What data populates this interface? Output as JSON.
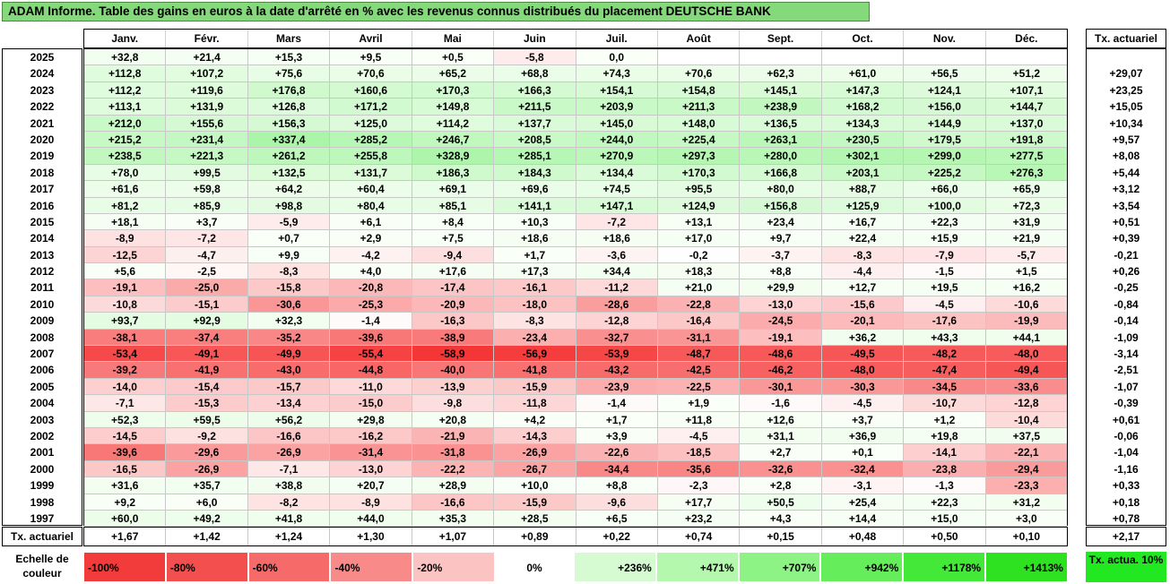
{
  "title": "ADAM Informe. Table des gains en euros à la date d'arrêté en % avec les revenus connus distribués du placement DEUTSCHE BANK",
  "months": [
    "Janv.",
    "Févr.",
    "Mars",
    "Avril",
    "Mai",
    "Juin",
    "Juil.",
    "Août",
    "Sept.",
    "Oct.",
    "Nov.",
    "Déc."
  ],
  "tx_header": "Tx. actuariel",
  "rows": [
    {
      "year": "2025",
      "values": [
        "+32,8",
        "+21,4",
        "+15,3",
        "+9,5",
        "+0,5",
        "-5,8",
        "0,0",
        "",
        "",
        "",
        "",
        ""
      ],
      "tx": ""
    },
    {
      "year": "2024",
      "values": [
        "+112,8",
        "+107,2",
        "+75,6",
        "+70,6",
        "+65,2",
        "+68,8",
        "+74,3",
        "+70,6",
        "+62,3",
        "+61,0",
        "+56,5",
        "+51,2"
      ],
      "tx": "+29,07"
    },
    {
      "year": "2023",
      "values": [
        "+112,2",
        "+119,6",
        "+176,8",
        "+160,6",
        "+170,3",
        "+166,3",
        "+154,1",
        "+154,8",
        "+145,1",
        "+147,3",
        "+124,1",
        "+107,1"
      ],
      "tx": "+23,25"
    },
    {
      "year": "2022",
      "values": [
        "+113,1",
        "+131,9",
        "+126,8",
        "+171,2",
        "+149,8",
        "+211,5",
        "+203,9",
        "+211,3",
        "+238,9",
        "+168,2",
        "+156,0",
        "+144,7"
      ],
      "tx": "+15,05"
    },
    {
      "year": "2021",
      "values": [
        "+212,0",
        "+155,6",
        "+156,3",
        "+125,0",
        "+114,2",
        "+137,7",
        "+145,0",
        "+148,0",
        "+136,5",
        "+134,3",
        "+144,9",
        "+137,0"
      ],
      "tx": "+10,34"
    },
    {
      "year": "2020",
      "values": [
        "+215,2",
        "+231,4",
        "+337,4",
        "+285,2",
        "+246,7",
        "+208,5",
        "+244,0",
        "+225,4",
        "+263,1",
        "+230,5",
        "+179,5",
        "+191,8"
      ],
      "tx": "+9,57"
    },
    {
      "year": "2019",
      "values": [
        "+238,5",
        "+221,3",
        "+261,2",
        "+255,8",
        "+328,9",
        "+285,1",
        "+270,9",
        "+297,3",
        "+280,0",
        "+302,1",
        "+299,0",
        "+277,5"
      ],
      "tx": "+8,08"
    },
    {
      "year": "2018",
      "values": [
        "+78,0",
        "+99,5",
        "+132,5",
        "+131,7",
        "+186,3",
        "+184,3",
        "+134,4",
        "+170,3",
        "+166,8",
        "+203,1",
        "+225,2",
        "+276,3"
      ],
      "tx": "+5,44"
    },
    {
      "year": "2017",
      "values": [
        "+61,6",
        "+59,8",
        "+64,2",
        "+60,4",
        "+69,1",
        "+69,6",
        "+74,5",
        "+95,5",
        "+80,0",
        "+88,7",
        "+66,0",
        "+65,9"
      ],
      "tx": "+3,12"
    },
    {
      "year": "2016",
      "values": [
        "+81,2",
        "+85,9",
        "+98,8",
        "+80,4",
        "+85,1",
        "+141,1",
        "+147,1",
        "+124,9",
        "+156,8",
        "+125,9",
        "+100,0",
        "+72,3"
      ],
      "tx": "+3,54"
    },
    {
      "year": "2015",
      "values": [
        "+18,1",
        "+3,7",
        "-5,9",
        "+6,1",
        "+8,4",
        "+10,3",
        "-7,2",
        "+13,1",
        "+23,4",
        "+16,7",
        "+22,3",
        "+31,9"
      ],
      "tx": "+0,51"
    },
    {
      "year": "2014",
      "values": [
        "-8,9",
        "-7,2",
        "+0,7",
        "+2,9",
        "+7,5",
        "+18,6",
        "+18,6",
        "+17,0",
        "+9,7",
        "+22,4",
        "+15,9",
        "+21,9"
      ],
      "tx": "+0,39"
    },
    {
      "year": "2013",
      "values": [
        "-12,5",
        "-4,7",
        "+9,9",
        "-4,2",
        "-9,4",
        "+1,7",
        "-3,6",
        "-0,2",
        "-3,7",
        "-8,3",
        "-7,9",
        "-5,7"
      ],
      "tx": "-0,21"
    },
    {
      "year": "2012",
      "values": [
        "+5,6",
        "-2,5",
        "-8,3",
        "+4,0",
        "+17,6",
        "+17,3",
        "+34,4",
        "+18,3",
        "+8,8",
        "-4,4",
        "-1,5",
        "+1,5"
      ],
      "tx": "+0,26"
    },
    {
      "year": "2011",
      "values": [
        "-19,1",
        "-25,0",
        "-15,8",
        "-20,8",
        "-17,4",
        "-16,1",
        "-11,2",
        "+21,0",
        "+29,9",
        "+12,7",
        "+19,5",
        "+16,2"
      ],
      "tx": "-0,25"
    },
    {
      "year": "2010",
      "values": [
        "-10,8",
        "-15,1",
        "-30,6",
        "-25,3",
        "-20,9",
        "-18,0",
        "-28,6",
        "-22,8",
        "-13,0",
        "-15,6",
        "-4,5",
        "-10,6"
      ],
      "tx": "-0,84"
    },
    {
      "year": "2009",
      "values": [
        "+93,7",
        "+92,9",
        "+32,3",
        "-1,4",
        "-16,3",
        "-8,3",
        "-12,8",
        "-16,4",
        "-24,5",
        "-20,1",
        "-17,6",
        "-19,9"
      ],
      "tx": "-0,14"
    },
    {
      "year": "2008",
      "values": [
        "-38,1",
        "-37,4",
        "-35,2",
        "-39,6",
        "-38,9",
        "-23,4",
        "-32,7",
        "-31,1",
        "-19,1",
        "+36,2",
        "+43,3",
        "+44,1"
      ],
      "tx": "-1,09"
    },
    {
      "year": "2007",
      "values": [
        "-53,4",
        "-49,1",
        "-49,9",
        "-55,4",
        "-58,9",
        "-56,9",
        "-53,9",
        "-48,7",
        "-48,6",
        "-49,5",
        "-48,2",
        "-48,0"
      ],
      "tx": "-3,14"
    },
    {
      "year": "2006",
      "values": [
        "-39,2",
        "-41,9",
        "-43,0",
        "-44,8",
        "-40,0",
        "-41,8",
        "-43,2",
        "-42,5",
        "-46,2",
        "-48,0",
        "-47,4",
        "-49,4"
      ],
      "tx": "-2,51"
    },
    {
      "year": "2005",
      "values": [
        "-14,0",
        "-15,4",
        "-15,7",
        "-11,0",
        "-13,9",
        "-15,9",
        "-23,9",
        "-22,5",
        "-30,1",
        "-30,3",
        "-34,5",
        "-33,6"
      ],
      "tx": "-1,07"
    },
    {
      "year": "2004",
      "values": [
        "-7,1",
        "-15,3",
        "-13,4",
        "-15,0",
        "-9,8",
        "-11,8",
        "-1,4",
        "+1,9",
        "-1,6",
        "-4,5",
        "-10,7",
        "-12,8"
      ],
      "tx": "-0,39"
    },
    {
      "year": "2003",
      "values": [
        "+52,3",
        "+59,5",
        "+56,2",
        "+29,8",
        "+20,8",
        "+4,2",
        "+1,7",
        "+11,8",
        "+12,6",
        "+3,7",
        "+1,2",
        "-10,4"
      ],
      "tx": "+0,61"
    },
    {
      "year": "2002",
      "values": [
        "-14,5",
        "-9,2",
        "-16,6",
        "-16,2",
        "-21,9",
        "-14,3",
        "+3,9",
        "-4,5",
        "+31,1",
        "+36,9",
        "+19,8",
        "+37,5"
      ],
      "tx": "-0,06"
    },
    {
      "year": "2001",
      "values": [
        "-39,6",
        "-29,6",
        "-26,9",
        "-31,4",
        "-31,8",
        "-26,9",
        "-22,6",
        "-18,5",
        "+2,7",
        "+0,1",
        "-14,1",
        "-22,1"
      ],
      "tx": "-1,04"
    },
    {
      "year": "2000",
      "values": [
        "-16,5",
        "-26,9",
        "-7,1",
        "-13,0",
        "-22,2",
        "-26,7",
        "-34,4",
        "-35,6",
        "-32,6",
        "-32,4",
        "-23,8",
        "-29,4"
      ],
      "tx": "-1,16"
    },
    {
      "year": "1999",
      "values": [
        "+31,6",
        "+35,7",
        "+38,8",
        "+20,7",
        "+28,9",
        "+10,0",
        "+8,8",
        "-2,3",
        "+2,8",
        "-3,1",
        "-1,3",
        "-23,3"
      ],
      "tx": "+0,33"
    },
    {
      "year": "1998",
      "values": [
        "+9,2",
        "+6,0",
        "-8,2",
        "-8,9",
        "-16,6",
        "-15,9",
        "-9,6",
        "+17,7",
        "+50,5",
        "+25,4",
        "+22,3",
        "+31,2"
      ],
      "tx": "+0,18"
    },
    {
      "year": "1997",
      "values": [
        "+60,0",
        "+49,2",
        "+41,8",
        "+44,0",
        "+35,3",
        "+28,5",
        "+6,5",
        "+23,2",
        "+4,3",
        "+14,4",
        "+15,0",
        "+3,0"
      ],
      "tx": "+0,78"
    }
  ],
  "tx_row_label": "Tx. actuariel",
  "tx_row_values": [
    "+1,67",
    "+1,42",
    "+1,24",
    "+1,30",
    "+1,07",
    "+0,89",
    "+0,22",
    "+0,74",
    "+0,15",
    "+0,48",
    "+0,50",
    "+0,10"
  ],
  "tx_row_total": "+2,17",
  "scale_label": "Echelle de couleur",
  "scale": [
    {
      "label": "-100%",
      "color": "#f23b3b"
    },
    {
      "label": "-80%",
      "color": "#f44f4f"
    },
    {
      "label": "-60%",
      "color": "#f66a6a"
    },
    {
      "label": "-40%",
      "color": "#f98a8a"
    },
    {
      "label": "-20%",
      "color": "#fcc3c3"
    },
    {
      "label": "0%",
      "color": "#ffffff"
    },
    {
      "label": "+236%",
      "color": "#d6fbd2"
    },
    {
      "label": "+471%",
      "color": "#b4f8ad"
    },
    {
      "label": "+707%",
      "color": "#8ef385"
    },
    {
      "label": "+942%",
      "color": "#66ed5b"
    },
    {
      "label": "+1178%",
      "color": "#44e838"
    },
    {
      "label": "+1413%",
      "color": "#2ee222"
    }
  ],
  "scale_legend": "Tx. actua. 10%"
}
